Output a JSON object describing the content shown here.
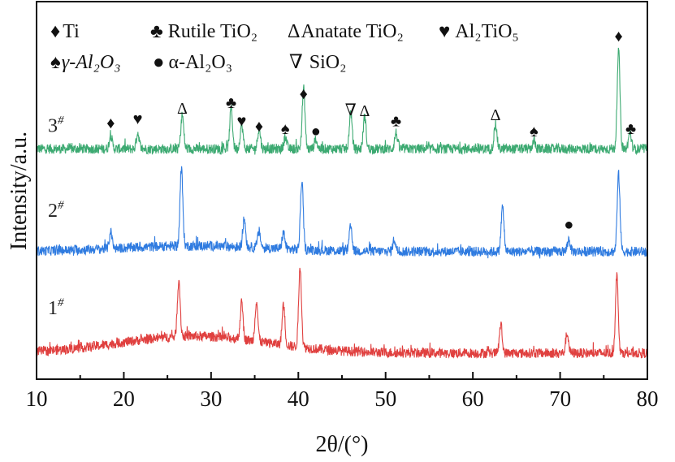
{
  "chart_data": {
    "type": "line",
    "title": "",
    "xlabel": "2θ/(°)",
    "ylabel": "Intensity/a.u.",
    "xlim": [
      10,
      80
    ],
    "ylim": [
      0,
      100
    ],
    "xticks": [
      10,
      20,
      30,
      40,
      50,
      60,
      70,
      80
    ],
    "grid": false,
    "legend": {
      "placement": "top-left",
      "items": [
        {
          "symbol": "♦",
          "name": "Ti"
        },
        {
          "symbol": "♣",
          "name": "Rutile TiO₂"
        },
        {
          "symbol": "Δ",
          "name": "Anatate TiO₂"
        },
        {
          "symbol": "♥",
          "name": "Al₂TiO₅"
        },
        {
          "symbol": "♠",
          "name": "γ-Al₂O₃"
        },
        {
          "symbol": "●",
          "name": "α-Al₂O₃"
        },
        {
          "symbol": "∇",
          "name": "SiO₂"
        }
      ]
    },
    "series": [
      {
        "name": "3#",
        "label_main": "3",
        "label_sup": "#",
        "color": "#3daa72",
        "baseline": 61,
        "label_x": 11.3,
        "label_y": 65.5,
        "peaks": [
          [
            18.5,
            3.6
          ],
          [
            21.6,
            4.3
          ],
          [
            26.7,
            9
          ],
          [
            32.3,
            10.7
          ],
          [
            33.5,
            6.5
          ],
          [
            35.5,
            5.4
          ],
          [
            38.5,
            3.2
          ],
          [
            40.6,
            16
          ],
          [
            42,
            2.6
          ],
          [
            46,
            9.7
          ],
          [
            47.6,
            8.6
          ],
          [
            51.2,
            4.3
          ],
          [
            62.6,
            6.5
          ],
          [
            67,
            2
          ],
          [
            76.7,
            26
          ],
          [
            78,
            4.3
          ]
        ],
        "markers": [
          {
            "symbol": "♦",
            "x": 18.5,
            "y": 66.5
          },
          {
            "symbol": "♥",
            "x": 21.6,
            "y": 67.5
          },
          {
            "symbol": "Δ",
            "x": 26.7,
            "y": 70.3
          },
          {
            "symbol": "♣",
            "x": 32.3,
            "y": 71.8
          },
          {
            "symbol": "♥",
            "x": 33.5,
            "y": 67
          },
          {
            "symbol": "♦",
            "x": 35.5,
            "y": 65.6
          },
          {
            "symbol": "♠",
            "x": 38.5,
            "y": 65
          },
          {
            "symbol": "♦",
            "x": 40.6,
            "y": 74.2
          },
          {
            "symbol": "●",
            "x": 42,
            "y": 64.3
          },
          {
            "symbol": "∇",
            "x": 46,
            "y": 69.9
          },
          {
            "symbol": "Δ",
            "x": 47.6,
            "y": 69.7
          },
          {
            "symbol": "♣",
            "x": 51.2,
            "y": 67
          },
          {
            "symbol": "Δ",
            "x": 62.6,
            "y": 68.6
          },
          {
            "symbol": "♠",
            "x": 67,
            "y": 64.3
          },
          {
            "symbol": "♦",
            "x": 76.7,
            "y": 89.5
          },
          {
            "symbol": "♣",
            "x": 78.1,
            "y": 65
          }
        ]
      },
      {
        "name": "2#",
        "label_main": "2",
        "label_sup": "#",
        "color": "#2f7be0",
        "baseline": 33.8,
        "label_x": 11.3,
        "label_y": 43,
        "peaks": [
          [
            18.5,
            4.3
          ],
          [
            26.6,
            20.4
          ],
          [
            33.8,
            7.5
          ],
          [
            35.5,
            4.3
          ],
          [
            38.3,
            4.3
          ],
          [
            40.4,
            18.3
          ],
          [
            46,
            6.5
          ],
          [
            51,
            3.2
          ],
          [
            63.4,
            11.8
          ],
          [
            71,
            3.2
          ],
          [
            76.7,
            20.4
          ]
        ],
        "markers": [
          {
            "symbol": "●",
            "x": 71,
            "y": 39.6
          }
        ]
      },
      {
        "name": "1#",
        "label_main": "1",
        "label_sup": "#",
        "color": "#e0403f",
        "baseline": 6.9,
        "label_x": 11.3,
        "label_y": 17.2,
        "peaks": [
          [
            26.3,
            15
          ],
          [
            33.5,
            9.7
          ],
          [
            35.2,
            10.7
          ],
          [
            38.3,
            10.7
          ],
          [
            40.2,
            21.5
          ],
          [
            63.2,
            7.5
          ],
          [
            70.8,
            5.4
          ],
          [
            76.5,
            20.4
          ]
        ],
        "markers": []
      }
    ]
  }
}
